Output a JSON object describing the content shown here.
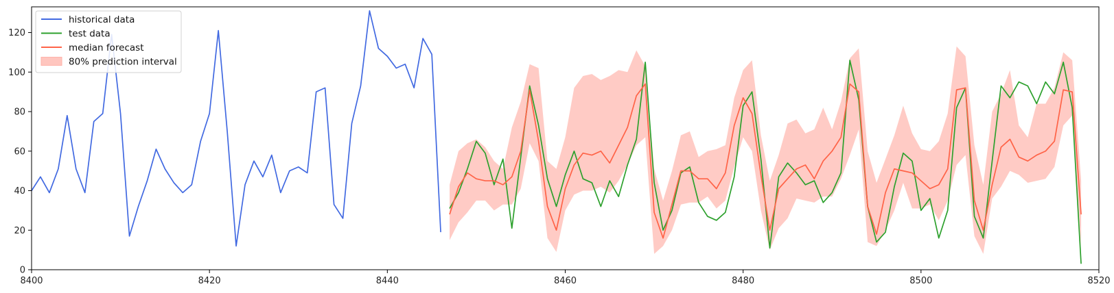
{
  "chart_data": {
    "type": "line",
    "title": "",
    "xlabel": "",
    "ylabel": "",
    "xlim": [
      8400,
      8520
    ],
    "ylim": [
      0,
      133
    ],
    "xticks": [
      8400,
      8420,
      8440,
      8460,
      8480,
      8500,
      8520
    ],
    "yticks": [
      0,
      20,
      40,
      60,
      80,
      100,
      120
    ],
    "grid": false,
    "legend_position": "top-left",
    "colors": {
      "historical": "#4169e1",
      "test": "#2ca02c",
      "median": "#ff6347",
      "interval": "#ffb3aa"
    },
    "legend": [
      {
        "label": "historical data",
        "kind": "line",
        "color": "#4169e1"
      },
      {
        "label": "test data",
        "kind": "line",
        "color": "#2ca02c"
      },
      {
        "label": "median forecast",
        "kind": "line",
        "color": "#ff6347"
      },
      {
        "label": "80% prediction interval",
        "kind": "patch",
        "color": "#ffb3aa"
      }
    ],
    "historical": {
      "name": "historical data",
      "x_start": 8400,
      "values": [
        40,
        47,
        39,
        51,
        78,
        51,
        39,
        75,
        79,
        119,
        79,
        17,
        32,
        45,
        61,
        51,
        44,
        39,
        43,
        65,
        79,
        121,
        70,
        12,
        43,
        55,
        47,
        58,
        39,
        50,
        52,
        49,
        90,
        92,
        33,
        26,
        74,
        93,
        131,
        112,
        108,
        102,
        104,
        92,
        117,
        109,
        19
      ]
    },
    "test": {
      "name": "test data",
      "x_start": 8447,
      "values": [
        31,
        39,
        51,
        65,
        59,
        43,
        56,
        21,
        57,
        93,
        73,
        46,
        32,
        48,
        60,
        46,
        44,
        32,
        45,
        37,
        53,
        66,
        105,
        44,
        20,
        30,
        49,
        52,
        34,
        27,
        25,
        29,
        47,
        83,
        90,
        56,
        11,
        47,
        54,
        49,
        43,
        45,
        34,
        39,
        49,
        106,
        86,
        32,
        14,
        19,
        42,
        59,
        55,
        30,
        36,
        16,
        30,
        82,
        92,
        27,
        16,
        55,
        93,
        87,
        95,
        93,
        84,
        95,
        89,
        105,
        82,
        3
      ]
    },
    "median": {
      "name": "median forecast",
      "x_start": 8447,
      "values": [
        28,
        42,
        49,
        46,
        45,
        45,
        43,
        47,
        60,
        91,
        65,
        32,
        20,
        41,
        53,
        59,
        58,
        60,
        54,
        63,
        72,
        88,
        94,
        29,
        16,
        33,
        50,
        50,
        46,
        46,
        41,
        49,
        73,
        87,
        79,
        48,
        20,
        41,
        46,
        51,
        53,
        46,
        55,
        60,
        67,
        94,
        90,
        32,
        18,
        39,
        51,
        50,
        49,
        45,
        41,
        43,
        51,
        91,
        92,
        35,
        20,
        43,
        62,
        66,
        57,
        55,
        58,
        60,
        65,
        91,
        90,
        28
      ]
    },
    "interval": {
      "name": "80% prediction interval",
      "x_start": 8447,
      "lower": [
        15,
        24,
        29,
        35,
        35,
        30,
        33,
        33,
        41,
        64,
        55,
        16,
        9,
        30,
        38,
        40,
        40,
        42,
        39,
        45,
        53,
        63,
        67,
        8,
        12,
        20,
        33,
        34,
        34,
        37,
        31,
        35,
        52,
        67,
        60,
        30,
        10,
        21,
        26,
        36,
        35,
        34,
        37,
        37,
        46,
        58,
        71,
        14,
        12,
        20,
        30,
        44,
        31,
        31,
        33,
        25,
        35,
        53,
        58,
        17,
        8,
        36,
        42,
        50,
        48,
        44,
        45,
        46,
        52,
        73,
        78,
        12
      ]
    },
    "interval_upper": {
      "x_start": 8447,
      "upper": [
        43,
        60,
        64,
        66,
        62,
        55,
        51,
        72,
        85,
        104,
        102,
        55,
        51,
        67,
        92,
        98,
        99,
        96,
        98,
        101,
        100,
        111,
        103,
        51,
        35,
        50,
        68,
        70,
        57,
        60,
        61,
        63,
        87,
        101,
        106,
        68,
        45,
        58,
        74,
        76,
        69,
        71,
        82,
        71,
        85,
        107,
        112,
        60,
        44,
        56,
        68,
        83,
        69,
        61,
        60,
        65,
        79,
        113,
        108,
        63,
        43,
        80,
        89,
        101,
        73,
        67,
        84,
        84,
        92,
        110,
        106,
        45
      ]
    }
  }
}
